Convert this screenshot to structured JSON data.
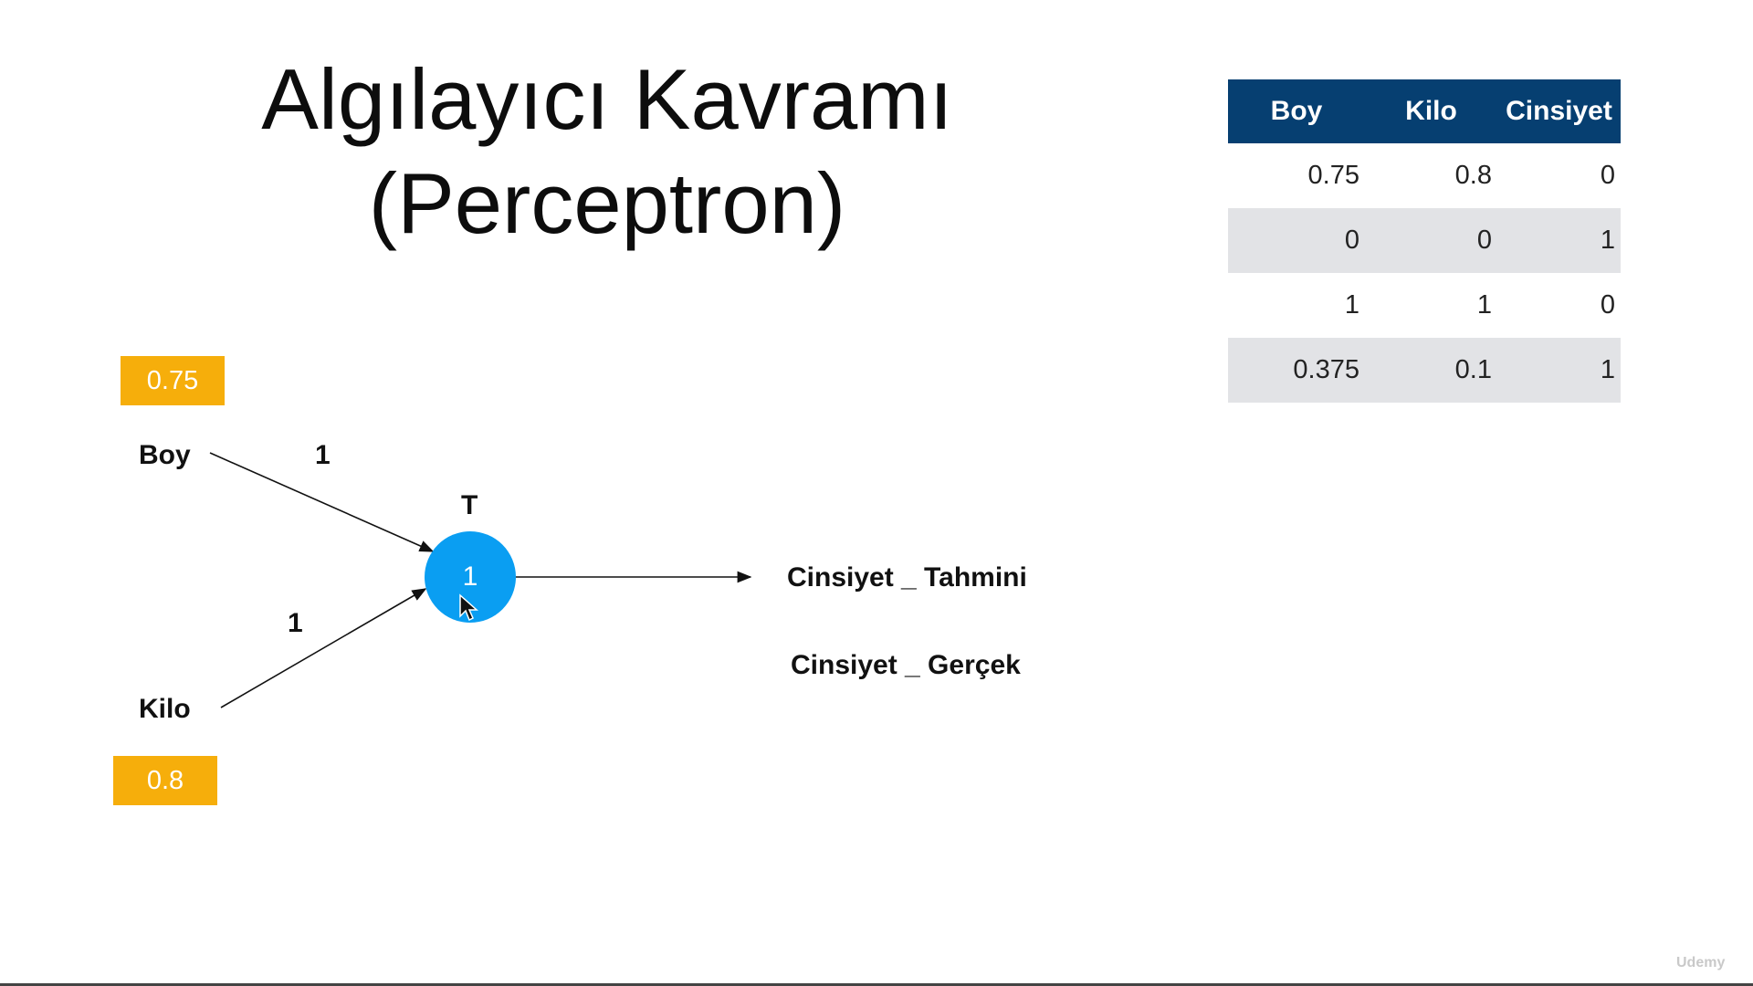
{
  "title": {
    "line1": "Algılayıcı Kavramı",
    "line2": "(Perceptron)"
  },
  "table": {
    "headers": [
      "Boy",
      "Kilo",
      "Cinsiyet"
    ],
    "rows": [
      [
        "0.75",
        "0.8",
        "0"
      ],
      [
        "0",
        "0",
        "1"
      ],
      [
        "1",
        "1",
        "0"
      ],
      [
        "0.375",
        "0.1",
        "1"
      ]
    ],
    "header_color": "#063f71",
    "stripe_color": "#e2e3e6"
  },
  "diagram": {
    "input1": {
      "label": "Boy",
      "value": "0.75",
      "weight": "1"
    },
    "input2": {
      "label": "Kilo",
      "value": "0.8",
      "weight": "1"
    },
    "threshold_label": "T",
    "node_value": "1",
    "output_predicted": "Cinsiyet _ Tahmini",
    "output_actual": "Cinsiyet _ Gerçek",
    "value_box_color": "#f6ae0b",
    "node_color": "#0a9ef2"
  },
  "watermark": "Udemy"
}
